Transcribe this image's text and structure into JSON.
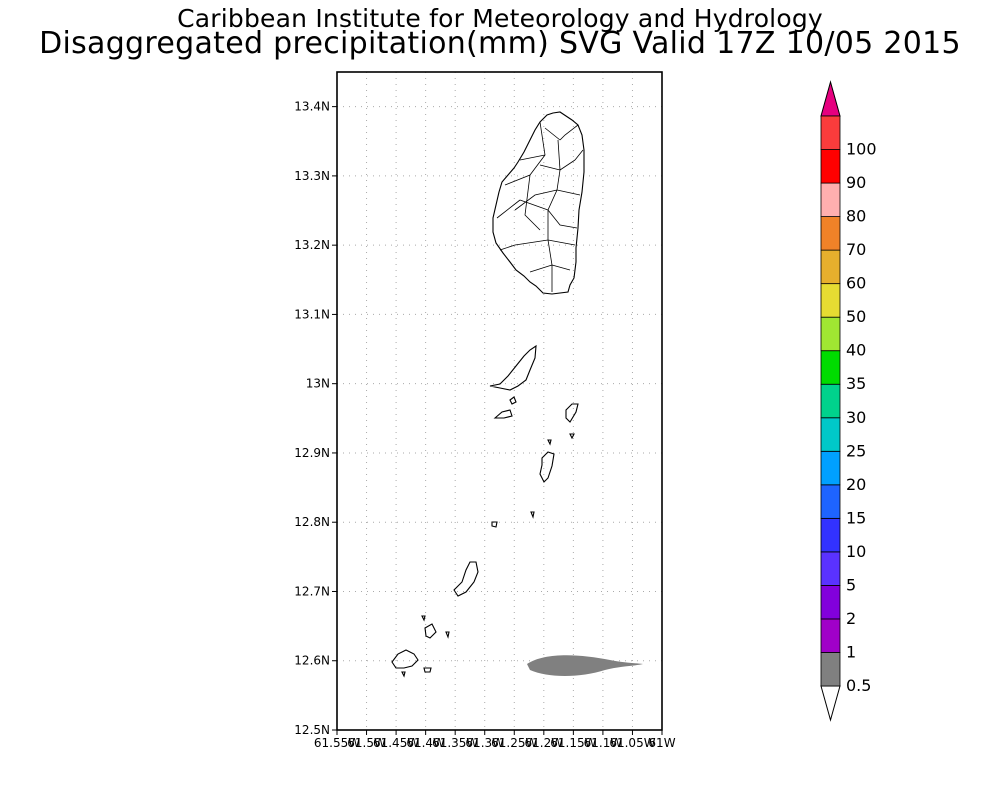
{
  "header": {
    "title": "Caribbean Institute for Meteorology and Hydrology",
    "subtitle": "Disaggregated precipitation(mm) SVG Valid 17Z 10/05 2015"
  },
  "map": {
    "lat_range": [
      12.5,
      13.45
    ],
    "lon_range": [
      -61.55,
      -61.0
    ],
    "lat_ticks": [
      {
        "value": 12.5,
        "label": "12.5N"
      },
      {
        "value": 12.6,
        "label": "12.6N"
      },
      {
        "value": 12.7,
        "label": "12.7N"
      },
      {
        "value": 12.8,
        "label": "12.8N"
      },
      {
        "value": 12.9,
        "label": "12.9N"
      },
      {
        "value": 13.0,
        "label": "13N"
      },
      {
        "value": 13.1,
        "label": "13.1N"
      },
      {
        "value": 13.2,
        "label": "13.2N"
      },
      {
        "value": 13.3,
        "label": "13.3N"
      },
      {
        "value": 13.4,
        "label": "13.4N"
      }
    ],
    "lon_ticks": [
      {
        "value": -61.55,
        "label": "61.55W"
      },
      {
        "value": -61.5,
        "label": "61.5W"
      },
      {
        "value": -61.45,
        "label": "61.45W"
      },
      {
        "value": -61.4,
        "label": "61.4W"
      },
      {
        "value": -61.35,
        "label": "61.35W"
      },
      {
        "value": -61.3,
        "label": "61.3W"
      },
      {
        "value": -61.25,
        "label": "61.25W"
      },
      {
        "value": -61.2,
        "label": "61.2W"
      },
      {
        "value": -61.15,
        "label": "61.15W"
      },
      {
        "value": -61.1,
        "label": "61.1W"
      },
      {
        "value": -61.05,
        "label": "61.05W"
      },
      {
        "value": -61.0,
        "label": "61W"
      }
    ],
    "precip_area": {
      "color": "#808080",
      "level": "0.5-1",
      "center_lat": 12.597,
      "center_lon": -61.15
    }
  },
  "colorbar": {
    "labels": [
      "0.5",
      "1",
      "2",
      "5",
      "10",
      "15",
      "20",
      "25",
      "30",
      "35",
      "40",
      "50",
      "60",
      "70",
      "80",
      "90",
      "100"
    ],
    "colors": [
      "#808080",
      "#a000c8",
      "#8200dc",
      "#5a32ff",
      "#3232ff",
      "#1e64ff",
      "#00a0ff",
      "#00c8c8",
      "#00d28c",
      "#00dc00",
      "#a0e632",
      "#e6dc32",
      "#e6af2d",
      "#f08228",
      "#ffafaf",
      "#ff0000",
      "#fa3c3c"
    ],
    "top_arrow_color": "#e6007f",
    "bottom_arrow_color": "#ffffff"
  }
}
